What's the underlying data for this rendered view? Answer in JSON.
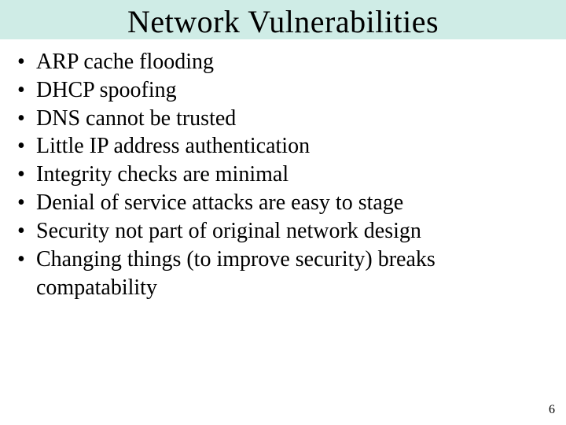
{
  "slide": {
    "title": "Network Vulnerabilities",
    "title_fontsize": 40,
    "title_band_color": "#cfece6",
    "background_color": "#ffffff",
    "text_color": "#000000",
    "body_fontsize": 28,
    "bullets": [
      "ARP cache flooding",
      "DHCP spoofing",
      "DNS cannot be trusted",
      "Little IP address authentication",
      "Integrity checks are minimal",
      "Denial of service attacks are easy to stage",
      "Security not part of original network design",
      "Changing things (to improve security) breaks compatability"
    ],
    "bullet_char": "•",
    "page_number": "6"
  }
}
